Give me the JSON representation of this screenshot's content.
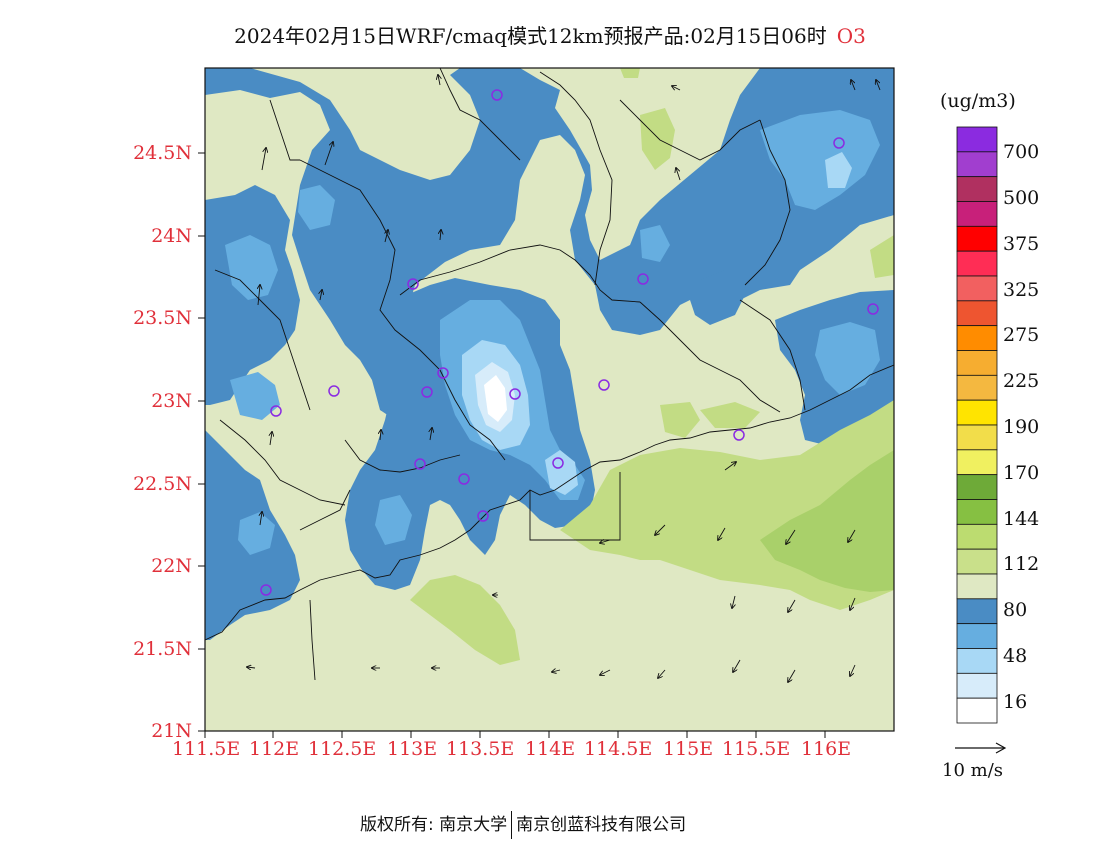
{
  "title": {
    "main": "2024年02月15日WRF/cmaq模式12km预报产品:02月15日06时",
    "species": "O3"
  },
  "map": {
    "lat_ticks": [
      "24.5N",
      "24N",
      "23.5N",
      "23N",
      "22.5N",
      "22N",
      "21.5N",
      "21N"
    ],
    "lon_ticks": [
      "111.5E",
      "112E",
      "112.5E",
      "113E",
      "113.5E",
      "114E",
      "114.5E",
      "115E",
      "115.5E",
      "116E"
    ],
    "colors": {
      "c16": "#ffffff",
      "c32": "#d7ecfa",
      "c48": "#a8d8f5",
      "c64": "#66aee0",
      "c80": "#4a8cc4",
      "c96": "#dfe8c3",
      "c112": "#c2dc84",
      "c128": "#a9d06a",
      "city_marker": "#8a2be2"
    }
  },
  "colorbar": {
    "unit": "(ug/m3)",
    "labels": [
      "700",
      "500",
      "375",
      "325",
      "275",
      "225",
      "190",
      "170",
      "144",
      "112",
      "80",
      "48",
      "16"
    ],
    "colors": [
      "#8b2be0",
      "#a13ecf",
      "#b03060",
      "#c8207a",
      "#ff0000",
      "#ff2d55",
      "#f26060",
      "#ee5530",
      "#ff8c00",
      "#f6ad30",
      "#f4b840",
      "#ffe400",
      "#f2dd4a",
      "#f0f060",
      "#6eaa38",
      "#86c042",
      "#bcdc70",
      "#c9e08a",
      "#dfe8c3",
      "#4a8cc4",
      "#66aee0",
      "#a8d8f5",
      "#d7ecfa",
      "#ffffff"
    ]
  },
  "vector_legend": {
    "label": "10 m/s"
  },
  "footer": {
    "left": "版权所有: 南京大学",
    "right": "南京创蓝科技有限公司"
  }
}
